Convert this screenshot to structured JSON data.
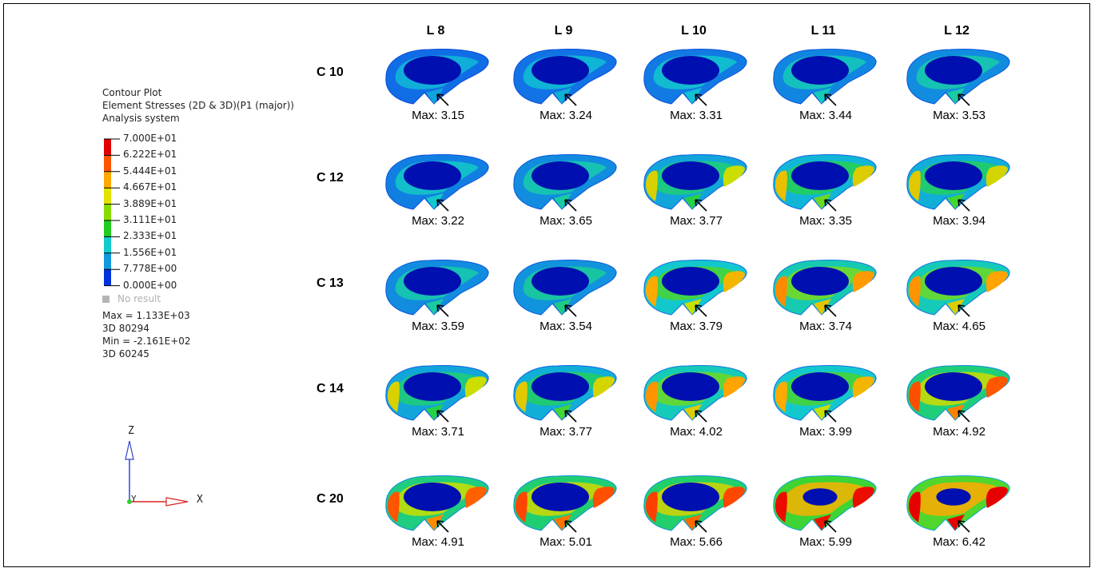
{
  "legend": {
    "title_lines": [
      "Contour Plot",
      "Element Stresses (2D & 3D)(P1 (major))",
      "Analysis system"
    ],
    "ticks": [
      "7.000E+01",
      "6.222E+01",
      "5.444E+01",
      "4.667E+01",
      "3.889E+01",
      "3.111E+01",
      "2.333E+01",
      "1.556E+01",
      "7.778E+00",
      "0.000E+00"
    ],
    "band_colors": [
      "#e00000",
      "#ff5500",
      "#ffaa00",
      "#e3e300",
      "#88dd00",
      "#22cc22",
      "#11cccc",
      "#1199dd",
      "#0033dd"
    ],
    "no_result": "No result",
    "stats": [
      "Max = 1.133E+03",
      "3D 80294",
      "Min = -2.161E+02",
      "3D 60245"
    ]
  },
  "axes": {
    "z_label": "Z",
    "x_label": "X",
    "y_label": "Y"
  },
  "grid": {
    "columns": [
      "L 8",
      "L 9",
      "L 10",
      "L 11",
      "L 12"
    ],
    "rows": [
      {
        "label": "C 10",
        "values": [
          "Max: 3.15",
          "Max: 3.24",
          "Max: 3.31",
          "Max: 3.44",
          "Max: 3.53"
        ],
        "levels": [
          0.05,
          0.08,
          0.12,
          0.17,
          0.2
        ]
      },
      {
        "label": "C 12",
        "values": [
          "Max: 3.22",
          "Max: 3.65",
          "Max: 3.77",
          "Max: 3.35",
          "Max: 3.94"
        ],
        "levels": [
          0.14,
          0.2,
          0.32,
          0.4,
          0.36
        ]
      },
      {
        "label": "C 13",
        "values": [
          "Max: 3.59",
          "Max: 3.54",
          "Max: 3.79",
          "Max: 3.74",
          "Max: 4.65"
        ],
        "levels": [
          0.2,
          0.24,
          0.5,
          0.58,
          0.56
        ]
      },
      {
        "label": "C 14",
        "values": [
          "Max: 3.71",
          "Max: 3.77",
          "Max: 4.02",
          "Max: 3.99",
          "Max: 4.92"
        ],
        "levels": [
          0.32,
          0.36,
          0.56,
          0.5,
          0.74
        ]
      },
      {
        "label": "C 20",
        "values": [
          "Max: 4.91",
          "Max: 5.01",
          "Max: 5.66",
          "Max: 5.99",
          "Max: 6.42"
        ],
        "levels": [
          0.72,
          0.76,
          0.78,
          0.96,
          1.0
        ]
      }
    ]
  }
}
